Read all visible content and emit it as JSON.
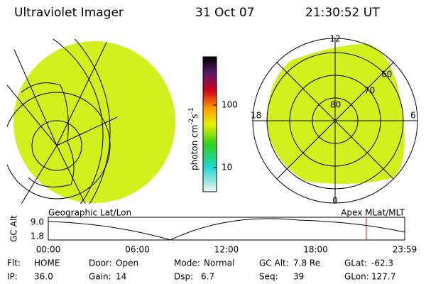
{
  "header": {
    "instrument": "Ultraviolet Imager",
    "date": "31 Oct 07",
    "time": "21:30:52 UT"
  },
  "colorbar": {
    "unit": "photon cm",
    "exp1": "-2",
    "unit2": "s",
    "exp2": "-1",
    "ticks": [
      "100",
      "10"
    ]
  },
  "polar": {
    "mlt": {
      "top": "12",
      "left": "18",
      "right": "6",
      "bottom": "0"
    },
    "mlat": [
      "80",
      "70",
      "60"
    ]
  },
  "captions": {
    "left": "Geographic Lat/Lon",
    "right": "Apex MLat/MLT"
  },
  "altitude": {
    "axis_label": "GC Alt",
    "yticks": [
      "9.0",
      "1.8"
    ],
    "xticks": [
      "00:00",
      "06:00",
      "12:00",
      "18:00",
      "23:59"
    ]
  },
  "footer": [
    {
      "label": "Flt:",
      "value": "HOME"
    },
    {
      "label": "Door:",
      "value": "Open"
    },
    {
      "label": "Mode:",
      "value": "Normal"
    },
    {
      "label": "GC Alt:",
      "value": "7.8 Re"
    },
    {
      "label": "GLat:",
      "value": "-62.3"
    },
    {
      "label": "IP:",
      "value": "36.0"
    },
    {
      "label": "Gain:",
      "value": "14"
    },
    {
      "label": "Dsp:",
      "value": "6.7"
    },
    {
      "label": "Seq:",
      "value": "39"
    },
    {
      "label": "GLon:",
      "value": "127.7"
    }
  ]
}
